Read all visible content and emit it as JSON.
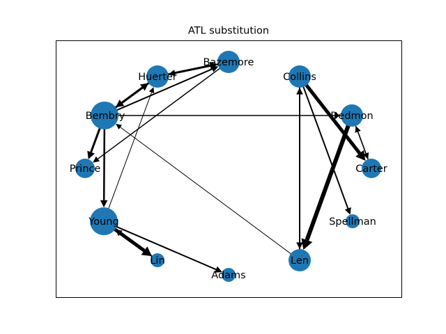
{
  "title": "ATL substitution",
  "colors": {
    "node": "#1f77b4",
    "edge": "#000000",
    "frame": "#000000",
    "background": "#ffffff"
  },
  "nodes": [
    {
      "id": "Bazemore",
      "label": "Bazemore",
      "size": "large"
    },
    {
      "id": "Huerter",
      "label": "Huerter",
      "size": "large"
    },
    {
      "id": "Bembry",
      "label": "Bembry",
      "size": "xlarge"
    },
    {
      "id": "Prince",
      "label": "Prince",
      "size": "medium"
    },
    {
      "id": "Young",
      "label": "Young",
      "size": "xlarge"
    },
    {
      "id": "Lin",
      "label": "Lin",
      "size": "small"
    },
    {
      "id": "Adams",
      "label": "Adams",
      "size": "small"
    },
    {
      "id": "Len",
      "label": "Len",
      "size": "large"
    },
    {
      "id": "Spellman",
      "label": "Spellman",
      "size": "small"
    },
    {
      "id": "Carter",
      "label": "Carter",
      "size": "medium"
    },
    {
      "id": "Dedmon",
      "label": "Dedmon",
      "size": "large"
    },
    {
      "id": "Collins",
      "label": "Collins",
      "size": "large"
    }
  ],
  "edges": [
    {
      "from": "Huerter",
      "to": "Bazemore",
      "weight": 3
    },
    {
      "from": "Bazemore",
      "to": "Huerter",
      "weight": 2
    },
    {
      "from": "Bembry",
      "to": "Bazemore",
      "weight": 2
    },
    {
      "from": "Bembry",
      "to": "Huerter",
      "weight": 3
    },
    {
      "from": "Huerter",
      "to": "Bembry",
      "weight": 3
    },
    {
      "from": "Bembry",
      "to": "Prince",
      "weight": 3
    },
    {
      "from": "Bazemore",
      "to": "Prince",
      "weight": 1.5
    },
    {
      "from": "Bembry",
      "to": "Young",
      "weight": 2.5
    },
    {
      "from": "Young",
      "to": "Huerter",
      "weight": 1
    },
    {
      "from": "Young",
      "to": "Lin",
      "weight": 5
    },
    {
      "from": "Lin",
      "to": "Young",
      "weight": 2
    },
    {
      "from": "Young",
      "to": "Adams",
      "weight": 2
    },
    {
      "from": "Len",
      "to": "Bembry",
      "weight": 1
    },
    {
      "from": "Bembry",
      "to": "Dedmon",
      "weight": 1.5
    },
    {
      "from": "Collins",
      "to": "Len",
      "weight": 2
    },
    {
      "from": "Len",
      "to": "Collins",
      "weight": 2
    },
    {
      "from": "Dedmon",
      "to": "Len",
      "weight": 6
    },
    {
      "from": "Collins",
      "to": "Carter",
      "weight": 5
    },
    {
      "from": "Collins",
      "to": "Spellman",
      "weight": 2
    },
    {
      "from": "Dedmon",
      "to": "Carter",
      "weight": 1.5
    },
    {
      "from": "Carter",
      "to": "Dedmon",
      "weight": 1.5
    }
  ]
}
